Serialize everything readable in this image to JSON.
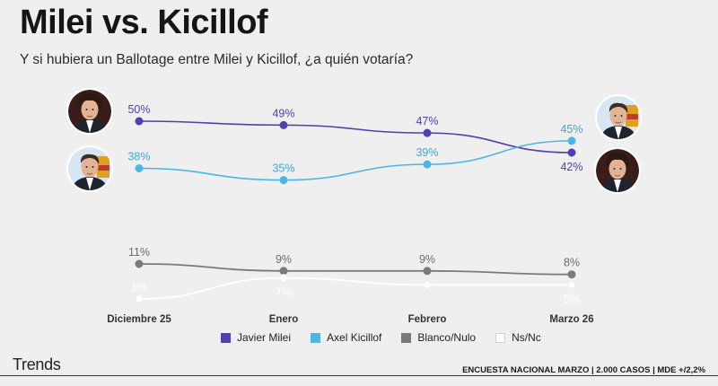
{
  "title": "Milei vs. Kicillof",
  "subtitle": "Y si hubiera un Ballotage entre Milei y Kicillof, ¿a quién votaría?",
  "brand": "Trends",
  "source": "ENCUESTA NACIONAL MARZO | 2.000 CASOS | MDE +/2,2%",
  "chart_data": {
    "type": "line",
    "categories": [
      "Diciembre 25",
      "Enero",
      "Febrero",
      "Marzo 26"
    ],
    "series": [
      {
        "name": "Javier Milei",
        "values": [
          50,
          49,
          47,
          42
        ],
        "labels": [
          "50%",
          "49%",
          "47%",
          "42%"
        ],
        "color": "#4f3fb0",
        "label_color": "#4f3fb0",
        "panel": "top"
      },
      {
        "name": "Axel Kicillof",
        "values": [
          38,
          35,
          39,
          45
        ],
        "labels": [
          "38%",
          "35%",
          "39%",
          "45%"
        ],
        "color": "#4bb5e6",
        "label_color": "#38a8dc",
        "panel": "top"
      },
      {
        "name": "Blanco/Nulo",
        "values": [
          11,
          9,
          9,
          8
        ],
        "labels": [
          "11%",
          "9%",
          "9%",
          "8%"
        ],
        "color": "#7a7a7a",
        "label_color": "#6e6e6e",
        "panel": "bottom"
      },
      {
        "name": "Ns/Nc",
        "values": [
          1,
          7,
          5,
          5
        ],
        "labels": [
          "1%",
          "7%",
          "",
          "5%"
        ],
        "color": "#ffffff",
        "label_color": "#ffffff",
        "panel": "bottom"
      }
    ],
    "legend_position": "bottom",
    "grid": false
  },
  "avatars": {
    "milei_left": "avatar-milei",
    "kicillof_left": "avatar-kicillof",
    "kicillof_right": "avatar-kicillof",
    "milei_right": "avatar-milei"
  }
}
